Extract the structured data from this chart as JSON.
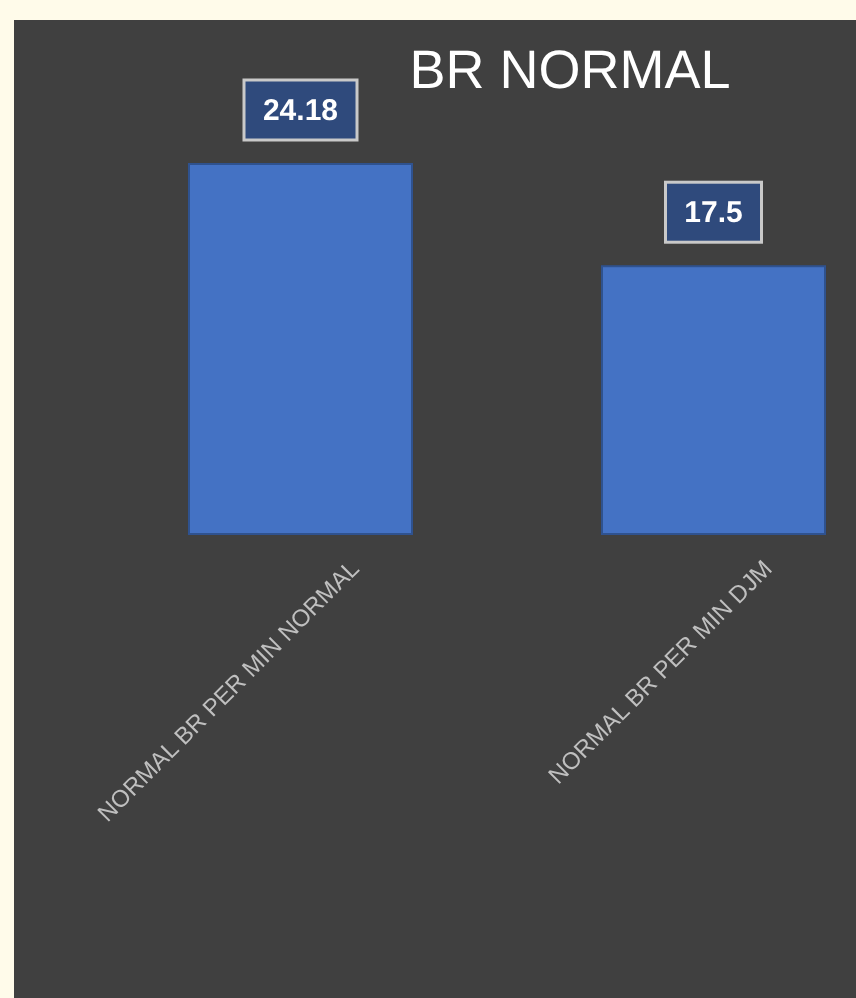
{
  "chart_data": {
    "type": "bar",
    "title": "BR NORMAL",
    "categories": [
      "NORMAL BR PER MIN NORMAL",
      "NORMAL BR PER MIN DJM"
    ],
    "values": [
      24.18,
      17.5
    ],
    "color": "#4472c4",
    "data_labels": true
  }
}
